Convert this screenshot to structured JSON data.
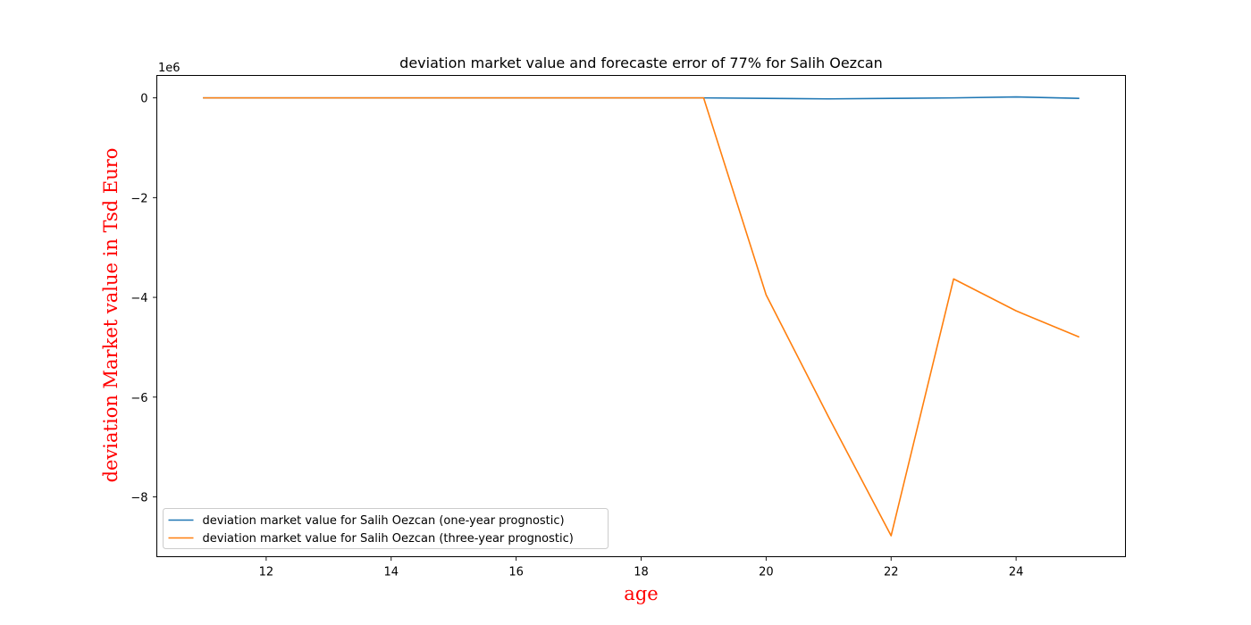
{
  "chart_data": {
    "type": "line",
    "title": "deviation market value and forecaste error of 77% for Salih Oezcan",
    "xlabel": "age",
    "ylabel": "deviation Market value in Tsd Euro",
    "label_color": "#ff0000",
    "y_offset_text": "1e6",
    "y_scale_factor": 1000000,
    "xlim": [
      10.25,
      25.75
    ],
    "ylim": [
      -9.2,
      0.45
    ],
    "x_ticks": [
      12,
      14,
      16,
      18,
      20,
      22,
      24
    ],
    "y_ticks": [
      0,
      -2,
      -4,
      -6,
      -8
    ],
    "x_tick_labels": [
      "12",
      "14",
      "16",
      "18",
      "20",
      "22",
      "24"
    ],
    "y_tick_labels": [
      "0",
      "−2",
      "−4",
      "−6",
      "−8"
    ],
    "grid": false,
    "legend_position": "lower-left",
    "series": [
      {
        "name": "deviation market value for Salih Oezcan  (one-year prognostic)",
        "color": "#1f77b4",
        "x": [
          11,
          12,
          13,
          14,
          15,
          16,
          17,
          18,
          19,
          20,
          21,
          22,
          23,
          24,
          25
        ],
        "y": [
          0,
          0,
          0,
          0,
          0,
          0,
          0,
          0,
          0,
          -0.01,
          -0.02,
          -0.01,
          0,
          0.02,
          -0.01
        ]
      },
      {
        "name": "deviation market value for Salih Oezcan  (three-year prognostic)",
        "color": "#ff7f0e",
        "x": [
          11,
          12,
          13,
          14,
          15,
          16,
          17,
          18,
          19,
          20,
          21,
          22,
          23,
          24,
          25
        ],
        "y": [
          0,
          0,
          0,
          0,
          0,
          0,
          0,
          0,
          0,
          -3.95,
          -6.4,
          -8.78,
          -3.63,
          -4.27,
          -4.79
        ]
      }
    ]
  }
}
